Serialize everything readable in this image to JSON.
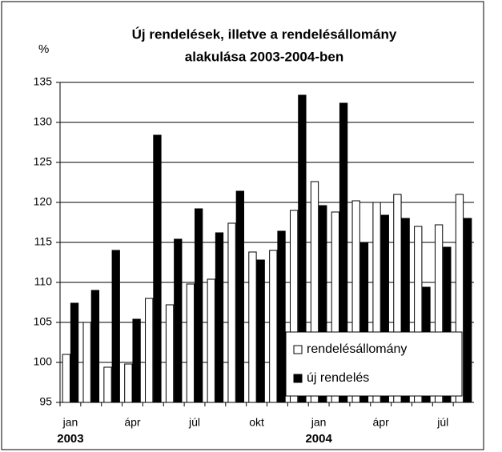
{
  "chart_data": {
    "type": "bar",
    "title": [
      "Új rendelések, illetve a rendelésállomány",
      "alakulása 2003-2004-ben"
    ],
    "y_label": "%",
    "categories": [
      "jan",
      null,
      null,
      "ápr",
      null,
      null,
      "júl",
      null,
      null,
      "okt",
      null,
      null,
      "jan",
      null,
      null,
      "ápr",
      null,
      null,
      "júl",
      null
    ],
    "years": [
      {
        "label": "2003",
        "index": 0
      },
      {
        "label": "2004",
        "index": 12
      }
    ],
    "series": [
      {
        "name": "rendelésállomány",
        "color": "#ffffff",
        "values": [
          101,
          105,
          99.4,
          99.8,
          108,
          107.2,
          109.8,
          110.4,
          117.4,
          113.8,
          114,
          119,
          122.6,
          118.8,
          120.2,
          120,
          121,
          117,
          117.2,
          121
        ]
      },
      {
        "name": "új rendelés",
        "color": "#000000",
        "values": [
          107.4,
          109,
          114,
          105.4,
          128.4,
          115.4,
          119.2,
          116.2,
          121.4,
          112.8,
          116.4,
          133.4,
          119.6,
          132.4,
          115,
          118.4,
          118,
          109.4,
          114.4,
          118
        ]
      }
    ],
    "ylim": [
      95,
      135
    ],
    "yticks": [
      95,
      100,
      105,
      110,
      115,
      120,
      125,
      130,
      135
    ],
    "grid": true,
    "legend": "lower right"
  }
}
